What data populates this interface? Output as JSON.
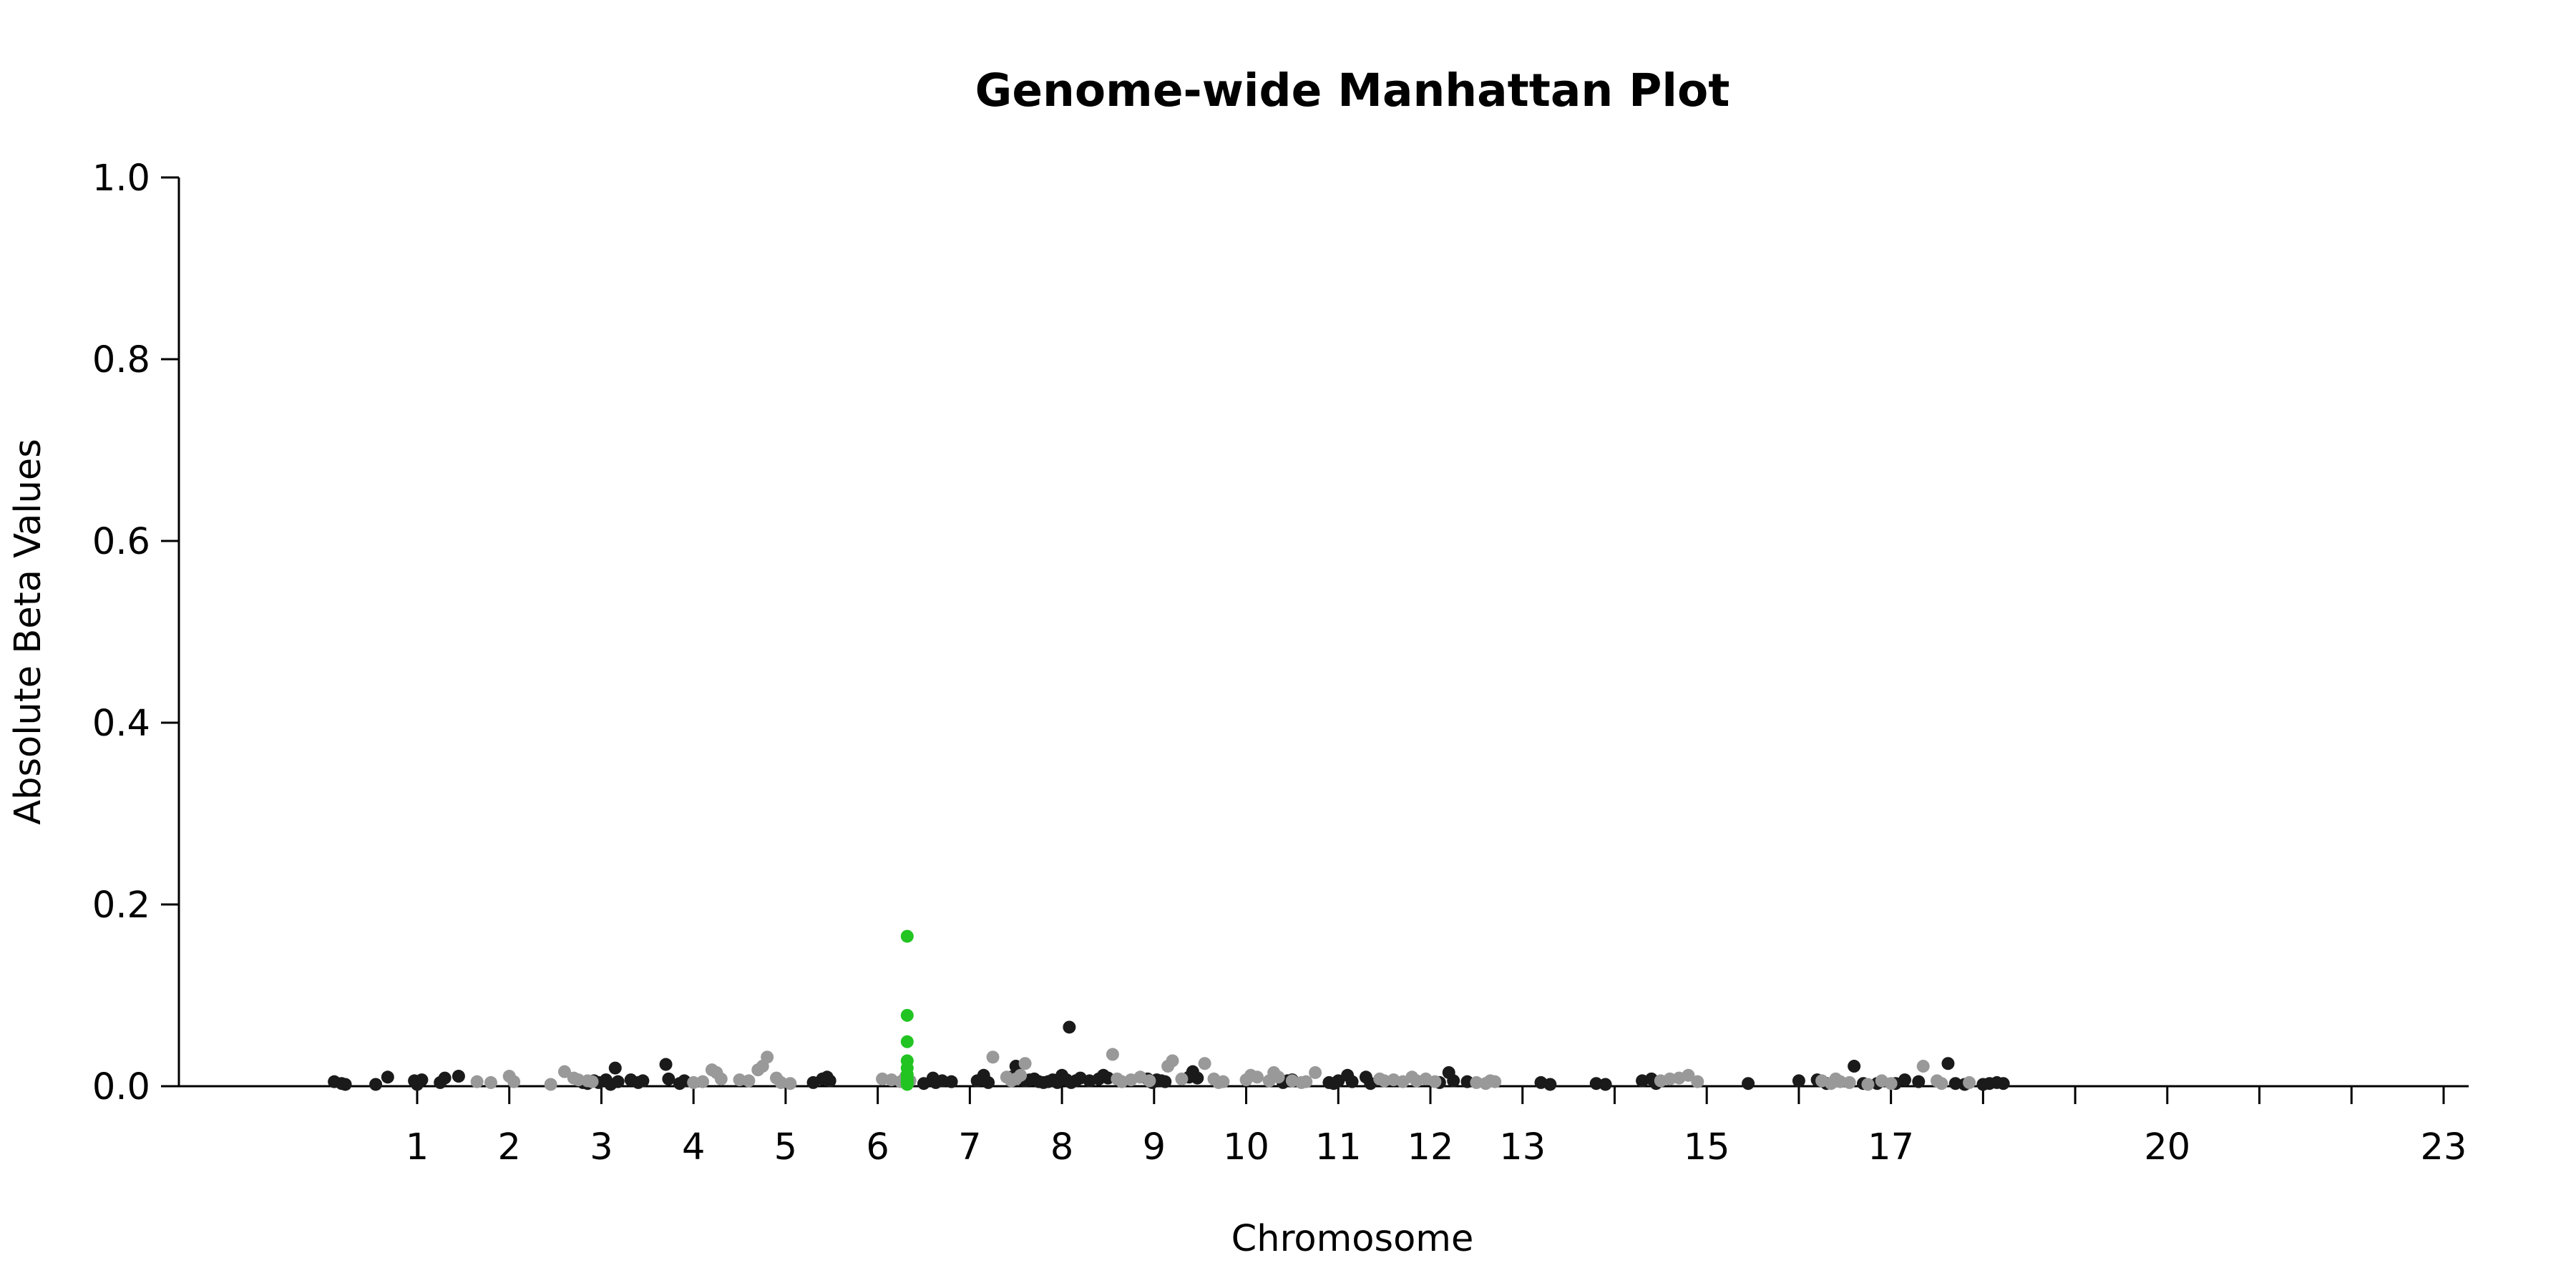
{
  "chart_data": {
    "type": "scatter",
    "title": "Genome-wide Manhattan Plot",
    "xlabel": "Chromosome",
    "ylabel": "Absolute Beta Values",
    "ylim": [
      0,
      1.0
    ],
    "yticks": [
      "0.0",
      "0.2",
      "0.4",
      "0.6",
      "0.8",
      "1.0"
    ],
    "xticks": [
      "1",
      "2",
      "3",
      "4",
      "5",
      "6",
      "7",
      "8",
      "9",
      "10",
      "11",
      "12",
      "13",
      "",
      "15",
      "",
      "17",
      "",
      "",
      "20",
      "",
      "",
      "23"
    ],
    "grid": false,
    "legend": "none",
    "colors": {
      "dark": "#1a1a1a",
      "light": "#999999",
      "highlight": "#22c422"
    },
    "series": [
      {
        "color": "dark",
        "points": [
          [
            0.1,
            0.005
          ],
          [
            0.18,
            0.003
          ],
          [
            0.22,
            0.002
          ],
          [
            0.55,
            0.002
          ],
          [
            0.68,
            0.01
          ],
          [
            0.97,
            0.006
          ],
          [
            1.0,
            0.002
          ],
          [
            1.05,
            0.007
          ],
          [
            1.25,
            0.004
          ],
          [
            1.3,
            0.009
          ],
          [
            1.45,
            0.011
          ],
          [
            2.8,
            0.004
          ],
          [
            2.85,
            0.003
          ],
          [
            2.92,
            0.006
          ],
          [
            2.97,
            0.004
          ],
          [
            3.05,
            0.007
          ],
          [
            3.1,
            0.002
          ],
          [
            3.15,
            0.02
          ],
          [
            3.18,
            0.005
          ],
          [
            3.32,
            0.007
          ],
          [
            3.4,
            0.004
          ],
          [
            3.45,
            0.006
          ],
          [
            3.7,
            0.024
          ],
          [
            3.73,
            0.008
          ],
          [
            3.85,
            0.003
          ],
          [
            3.9,
            0.006
          ],
          [
            5.3,
            0.004
          ],
          [
            5.4,
            0.008
          ],
          [
            5.45,
            0.01
          ],
          [
            5.48,
            0.006
          ],
          [
            6.5,
            0.003
          ],
          [
            6.6,
            0.009
          ],
          [
            6.63,
            0.004
          ],
          [
            6.7,
            0.006
          ],
          [
            6.8,
            0.005
          ],
          [
            7.08,
            0.006
          ],
          [
            7.15,
            0.012
          ],
          [
            7.2,
            0.004
          ],
          [
            7.45,
            0.01
          ],
          [
            7.5,
            0.022
          ],
          [
            7.56,
            0.008
          ],
          [
            7.6,
            0.006
          ],
          [
            7.65,
            0.007
          ],
          [
            7.7,
            0.008
          ],
          [
            7.75,
            0.005
          ],
          [
            7.8,
            0.004
          ],
          [
            7.85,
            0.005
          ],
          [
            7.9,
            0.007
          ],
          [
            7.95,
            0.004
          ],
          [
            8.0,
            0.012
          ],
          [
            8.05,
            0.007
          ],
          [
            8.08,
            0.065
          ],
          [
            8.1,
            0.004
          ],
          [
            8.15,
            0.006
          ],
          [
            8.2,
            0.009
          ],
          [
            8.3,
            0.006
          ],
          [
            8.4,
            0.008
          ],
          [
            8.45,
            0.012
          ],
          [
            8.5,
            0.009
          ],
          [
            8.93,
            0.008
          ],
          [
            8.98,
            0.004
          ],
          [
            9.03,
            0.007
          ],
          [
            9.08,
            0.006
          ],
          [
            9.12,
            0.005
          ],
          [
            9.38,
            0.01
          ],
          [
            9.42,
            0.016
          ],
          [
            9.47,
            0.009
          ],
          [
            10.4,
            0.004
          ],
          [
            10.45,
            0.006
          ],
          [
            10.5,
            0.007
          ],
          [
            10.9,
            0.004
          ],
          [
            10.95,
            0.003
          ],
          [
            11.0,
            0.006
          ],
          [
            11.1,
            0.012
          ],
          [
            11.15,
            0.005
          ],
          [
            11.3,
            0.01
          ],
          [
            11.35,
            0.003
          ],
          [
            12.1,
            0.004
          ],
          [
            12.2,
            0.015
          ],
          [
            12.25,
            0.006
          ],
          [
            12.4,
            0.005
          ],
          [
            13.2,
            0.004
          ],
          [
            13.3,
            0.002
          ],
          [
            13.8,
            0.003
          ],
          [
            13.9,
            0.002
          ],
          [
            14.3,
            0.006
          ],
          [
            14.4,
            0.008
          ],
          [
            14.45,
            0.003
          ],
          [
            15.45,
            0.003
          ],
          [
            16.0,
            0.006
          ],
          [
            16.2,
            0.007
          ],
          [
            16.3,
            0.003
          ],
          [
            16.6,
            0.022
          ],
          [
            16.7,
            0.003
          ],
          [
            16.85,
            0.003
          ],
          [
            17.05,
            0.003
          ],
          [
            17.15,
            0.007
          ],
          [
            17.3,
            0.005
          ],
          [
            17.62,
            0.025
          ],
          [
            17.7,
            0.003
          ],
          [
            17.8,
            0.002
          ],
          [
            18.0,
            0.002
          ],
          [
            18.07,
            0.003
          ],
          [
            18.15,
            0.004
          ],
          [
            18.22,
            0.003
          ]
        ]
      },
      {
        "color": "light",
        "points": [
          [
            1.65,
            0.005
          ],
          [
            1.8,
            0.004
          ],
          [
            2.0,
            0.011
          ],
          [
            2.05,
            0.005
          ],
          [
            2.45,
            0.002
          ],
          [
            2.6,
            0.016
          ],
          [
            2.7,
            0.009
          ],
          [
            2.75,
            0.007
          ],
          [
            2.85,
            0.006
          ],
          [
            2.9,
            0.005
          ],
          [
            4.0,
            0.004
          ],
          [
            4.1,
            0.005
          ],
          [
            4.2,
            0.018
          ],
          [
            4.25,
            0.015
          ],
          [
            4.3,
            0.008
          ],
          [
            4.5,
            0.007
          ],
          [
            4.6,
            0.006
          ],
          [
            4.7,
            0.018
          ],
          [
            4.75,
            0.022
          ],
          [
            4.8,
            0.032
          ],
          [
            4.9,
            0.009
          ],
          [
            4.95,
            0.004
          ],
          [
            5.05,
            0.003
          ],
          [
            6.05,
            0.008
          ],
          [
            6.15,
            0.007
          ],
          [
            6.25,
            0.005
          ],
          [
            6.3,
            0.01
          ],
          [
            6.35,
            0.006
          ],
          [
            7.25,
            0.032
          ],
          [
            7.4,
            0.01
          ],
          [
            7.45,
            0.006
          ],
          [
            7.5,
            0.008
          ],
          [
            7.55,
            0.012
          ],
          [
            7.6,
            0.025
          ],
          [
            8.55,
            0.035
          ],
          [
            8.6,
            0.008
          ],
          [
            8.65,
            0.005
          ],
          [
            8.75,
            0.007
          ],
          [
            8.85,
            0.01
          ],
          [
            8.95,
            0.006
          ],
          [
            9.15,
            0.022
          ],
          [
            9.2,
            0.028
          ],
          [
            9.3,
            0.008
          ],
          [
            9.55,
            0.025
          ],
          [
            9.65,
            0.008
          ],
          [
            9.7,
            0.004
          ],
          [
            9.75,
            0.005
          ],
          [
            10.0,
            0.007
          ],
          [
            10.05,
            0.012
          ],
          [
            10.12,
            0.01
          ],
          [
            10.25,
            0.006
          ],
          [
            10.3,
            0.015
          ],
          [
            10.35,
            0.01
          ],
          [
            10.5,
            0.006
          ],
          [
            10.6,
            0.004
          ],
          [
            10.65,
            0.005
          ],
          [
            10.75,
            0.015
          ],
          [
            11.45,
            0.008
          ],
          [
            11.5,
            0.006
          ],
          [
            11.6,
            0.007
          ],
          [
            11.7,
            0.005
          ],
          [
            11.8,
            0.01
          ],
          [
            11.85,
            0.006
          ],
          [
            11.95,
            0.008
          ],
          [
            12.05,
            0.005
          ],
          [
            12.5,
            0.004
          ],
          [
            12.6,
            0.003
          ],
          [
            12.65,
            0.006
          ],
          [
            12.7,
            0.005
          ],
          [
            14.5,
            0.006
          ],
          [
            14.6,
            0.008
          ],
          [
            14.7,
            0.009
          ],
          [
            14.8,
            0.012
          ],
          [
            14.9,
            0.005
          ],
          [
            16.25,
            0.006
          ],
          [
            16.35,
            0.003
          ],
          [
            16.4,
            0.008
          ],
          [
            16.45,
            0.005
          ],
          [
            16.55,
            0.004
          ],
          [
            16.75,
            0.002
          ],
          [
            16.9,
            0.006
          ],
          [
            17.0,
            0.003
          ],
          [
            17.35,
            0.022
          ],
          [
            17.5,
            0.006
          ],
          [
            17.55,
            0.003
          ],
          [
            17.85,
            0.004
          ]
        ]
      },
      {
        "color": "highlight",
        "points": [
          [
            6.32,
            0.165
          ],
          [
            6.32,
            0.078
          ],
          [
            6.32,
            0.049
          ],
          [
            6.32,
            0.028
          ],
          [
            6.32,
            0.02
          ],
          [
            6.32,
            0.013
          ],
          [
            6.32,
            0.009
          ],
          [
            6.32,
            0.006
          ],
          [
            6.32,
            0.004
          ],
          [
            6.32,
            0.002
          ]
        ]
      }
    ]
  }
}
